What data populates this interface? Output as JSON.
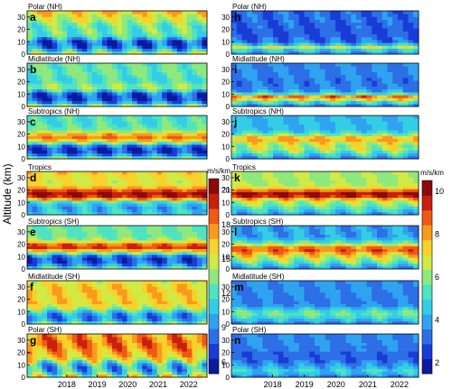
{
  "chart_data": {
    "type": "heatmap",
    "ylabel": "Altitude (km)",
    "x_ticks": [
      "2018",
      "2019",
      "2020",
      "2021",
      "2022"
    ],
    "y_ticks": [
      "0",
      "10",
      "20",
      "30"
    ],
    "ylim": [
      0,
      35
    ],
    "xlim": [
      2017.2,
      2023.1
    ],
    "colorbars": [
      {
        "unit": "m/s/km",
        "ticks": [
          "6",
          "9",
          "12",
          "15",
          "18",
          "21"
        ],
        "range": [
          5,
          22
        ]
      },
      {
        "unit": "m/s/km",
        "ticks": [
          "2",
          "4",
          "6",
          "8",
          "10"
        ],
        "range": [
          1.5,
          10.5
        ]
      }
    ],
    "columns": [
      {
        "colorbar": 0,
        "panels": [
          {
            "letter": "a",
            "region": "Polar (NH)"
          },
          {
            "letter": "b",
            "region": "Midlatitude (NH)"
          },
          {
            "letter": "c",
            "region": "Subtropics (NH)"
          },
          {
            "letter": "d",
            "region": "Tropics"
          },
          {
            "letter": "e",
            "region": "Subtropics (SH)"
          },
          {
            "letter": "f",
            "region": "Midlatitude (SH)"
          },
          {
            "letter": "g",
            "region": "Polar (SH)"
          }
        ]
      },
      {
        "colorbar": 1,
        "panels": [
          {
            "letter": "h",
            "region": "Polar (NH)"
          },
          {
            "letter": "i",
            "region": "Midlatitude (NH)"
          },
          {
            "letter": "j",
            "region": "Subtropics (NH)"
          },
          {
            "letter": "k",
            "region": "Tropics"
          },
          {
            "letter": "l",
            "region": "Subtropics (SH)"
          },
          {
            "letter": "m",
            "region": "Midlatitude  (SH)"
          },
          {
            "letter": "n",
            "region": "Polar (SH)"
          }
        ]
      }
    ]
  }
}
